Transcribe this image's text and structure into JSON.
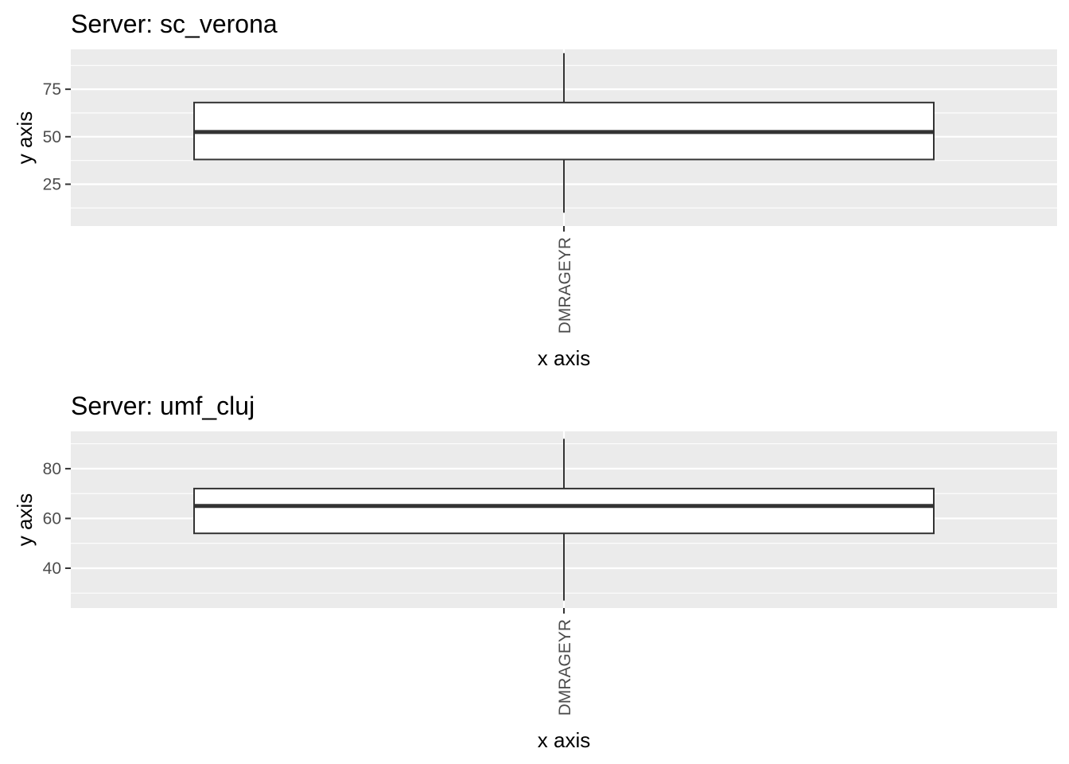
{
  "chart_data": [
    {
      "type": "box",
      "title": "Server: sc_verona",
      "xlabel": "x axis",
      "ylabel": "y axis",
      "categories": [
        "DMRAGEYR"
      ],
      "ylim": [
        3,
        96
      ],
      "yticks": [
        25,
        50,
        75
      ],
      "grid": true,
      "boxes": [
        {
          "category": "DMRAGEYR",
          "whisker_low": 10,
          "q1": 38,
          "median": 52.5,
          "q3": 68,
          "whisker_high": 94
        }
      ],
      "colors": {
        "panel_bg": "#ebebeb",
        "grid": "#ffffff",
        "box_fill": "#ffffff",
        "box_line": "#333333"
      }
    },
    {
      "type": "box",
      "title": "Server: umf_cluj",
      "xlabel": "x axis",
      "ylabel": "y axis",
      "categories": [
        "DMRAGEYR"
      ],
      "ylim": [
        24,
        95
      ],
      "yticks": [
        40,
        60,
        80
      ],
      "grid": true,
      "boxes": [
        {
          "category": "DMRAGEYR",
          "whisker_low": 27,
          "q1": 54,
          "median": 65,
          "q3": 72,
          "whisker_high": 92
        }
      ],
      "colors": {
        "panel_bg": "#ebebeb",
        "grid": "#ffffff",
        "box_fill": "#ffffff",
        "box_line": "#333333"
      }
    }
  ]
}
